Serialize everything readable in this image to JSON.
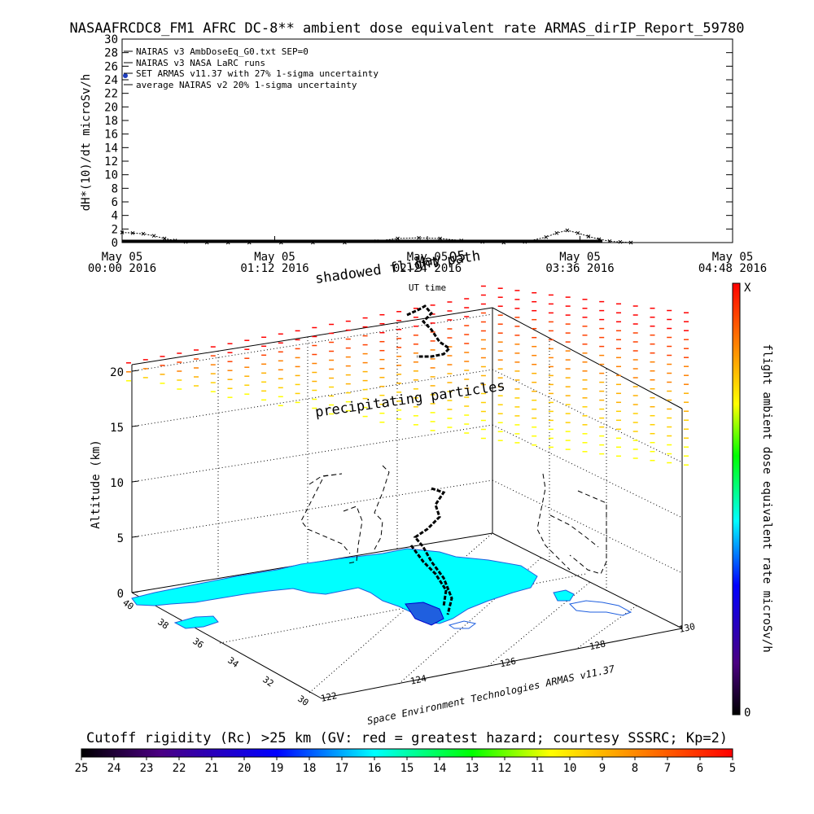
{
  "chart_data": [
    {
      "type": "line",
      "title": "NASAAFRCDC8_FM1 AFRC DC-8** ambient dose equivalent rate ARMAS_dirIP_Report_59780",
      "ylabel": "dH*(10)/dt microSv/h",
      "xlabel": "UT time",
      "ylim": [
        0,
        30
      ],
      "yticks": [
        "0",
        "2",
        "4",
        "6",
        "8",
        "10",
        "12",
        "14",
        "16",
        "18",
        "20",
        "22",
        "24",
        "26",
        "28",
        "30"
      ],
      "xticks": [
        {
          "date": "May 05",
          "time": "00:00 2016"
        },
        {
          "date": "May 05",
          "time": "01:12 2016"
        },
        {
          "date": "May 05",
          "time": "02:24 2016"
        },
        {
          "date": "May 05",
          "time": "03:36 2016"
        },
        {
          "date": "May 05",
          "time": "04:48 2016"
        }
      ],
      "legend_position": "top-left",
      "legend": [
        "NAIRAS v3 AmbDoseEq_G0.txt SEP=0",
        "NAIRAS v3 NASA LaRC runs",
        "SET ARMAS v11.37 with 27% 1-sigma uncertainty",
        "average NAIRAS v2 20% 1-sigma uncertainty"
      ],
      "series": [
        {
          "x": [
            "00:00",
            "00:05",
            "00:10",
            "00:15",
            "00:20",
            "00:25",
            "00:30",
            "00:40",
            "00:50",
            "01:00",
            "01:15",
            "01:30",
            "01:45",
            "02:00",
            "02:10",
            "02:20",
            "02:30",
            "02:40",
            "02:50",
            "03:00",
            "03:10",
            "03:20",
            "03:25",
            "03:30",
            "03:35",
            "03:40",
            "03:45",
            "03:50",
            "03:55",
            "04:00"
          ],
          "values": [
            1.5,
            1.4,
            1.3,
            1.0,
            0.6,
            0.3,
            0.1,
            0.0,
            0.0,
            0.0,
            0.0,
            0.0,
            0.0,
            0.2,
            0.6,
            0.7,
            0.6,
            0.3,
            0.1,
            0.0,
            0.1,
            0.8,
            1.4,
            1.8,
            1.4,
            0.9,
            0.5,
            0.2,
            0.1,
            0.0
          ]
        }
      ]
    },
    {
      "type": "3d-map",
      "zlabel": "Altitude (km)",
      "z_ticks": [
        "0",
        "5",
        "10",
        "15",
        "20"
      ],
      "lat_ticks": [
        "40",
        "38",
        "36",
        "34",
        "32",
        "30"
      ],
      "lon_ticks": [
        "122",
        "124",
        "126",
        "128",
        "130"
      ],
      "annotations": [
        "shadowed flight path",
        "May 05",
        "precipitating particles"
      ],
      "footer": "Space Environment Technologies ARMAS v11.37",
      "colorbar": {
        "label": "flight ambient dose equivalent rate microSv/h",
        "min_label": "0",
        "max_label": "X",
        "colors": [
          "#000000",
          "#4b0082",
          "#0000ff",
          "#00ffff",
          "#00ff00",
          "#ffff00",
          "#ff8000",
          "#ff0000"
        ]
      },
      "rigidity_bar": {
        "title": "Cutoff rigidity (Rc) >25 km (GV: red = greatest hazard; courtesy SSSRC; Kp=2)",
        "ticks": [
          "25",
          "24",
          "23",
          "22",
          "21",
          "20",
          "19",
          "18",
          "17",
          "16",
          "15",
          "14",
          "13",
          "12",
          "11",
          "10",
          "9",
          "8",
          "7",
          "6",
          "5"
        ]
      }
    }
  ]
}
